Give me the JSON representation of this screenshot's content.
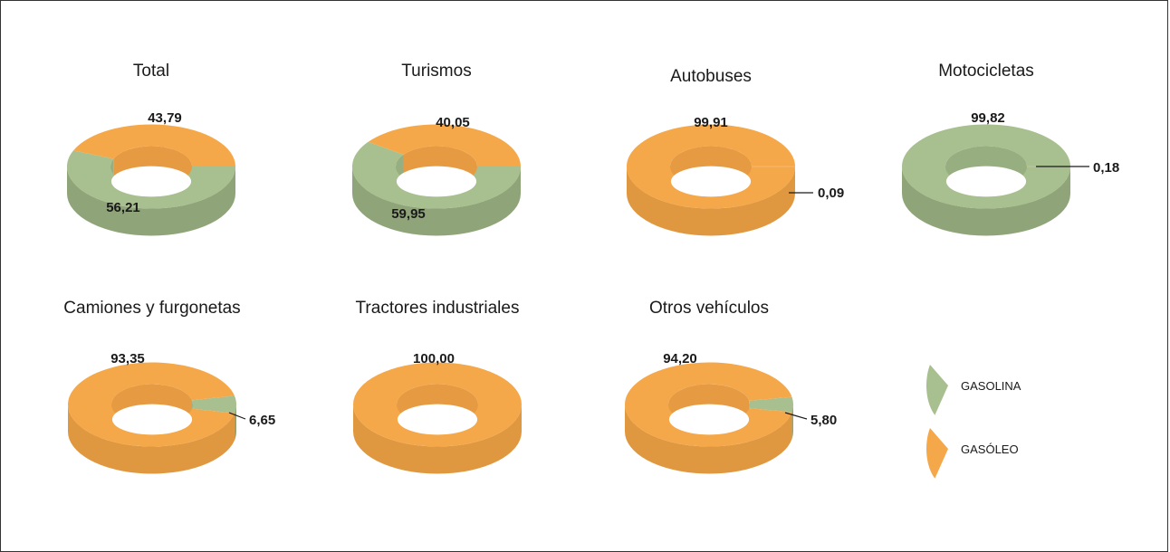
{
  "chart_data": [
    {
      "type": "pie",
      "title": "Total",
      "series": [
        {
          "name": "GASOLINA",
          "value": 56.21,
          "label": "56,21"
        },
        {
          "name": "GASÓLEO",
          "value": 43.79,
          "label": "43,79"
        }
      ]
    },
    {
      "type": "pie",
      "title": "Turismos",
      "series": [
        {
          "name": "GASOLINA",
          "value": 59.95,
          "label": "59,95"
        },
        {
          "name": "GASÓLEO",
          "value": 40.05,
          "label": "40,05"
        }
      ]
    },
    {
      "type": "pie",
      "title": "Autobuses",
      "series": [
        {
          "name": "GASOLINA",
          "value": 0.09,
          "label": "0,09"
        },
        {
          "name": "GASÓLEO",
          "value": 99.91,
          "label": "99,91"
        }
      ]
    },
    {
      "type": "pie",
      "title": "Motocicletas",
      "series": [
        {
          "name": "GASOLINA",
          "value": 99.82,
          "label": "99,82"
        },
        {
          "name": "GASÓLEO",
          "value": 0.18,
          "label": "0,18"
        }
      ]
    },
    {
      "type": "pie",
      "title": "Camiones y furgonetas",
      "series": [
        {
          "name": "GASOLINA",
          "value": 6.65,
          "label": "6,65"
        },
        {
          "name": "GASÓLEO",
          "value": 93.35,
          "label": "93,35"
        }
      ]
    },
    {
      "type": "pie",
      "title": "Tractores industriales",
      "series": [
        {
          "name": "GASOLINA",
          "value": 0,
          "label": ""
        },
        {
          "name": "GASÓLEO",
          "value": 100,
          "label": "100,00"
        }
      ]
    },
    {
      "type": "pie",
      "title": "Otros vehículos",
      "series": [
        {
          "name": "GASOLINA",
          "value": 5.8,
          "label": "5,80"
        },
        {
          "name": "GASÓLEO",
          "value": 94.2,
          "label": "94,20"
        }
      ]
    }
  ],
  "legend": {
    "items": [
      {
        "name": "GASOLINA",
        "label": "GASOLINA",
        "color": "#a8bf8f"
      },
      {
        "name": "GASÓLEO",
        "label": "GASÓLEO",
        "color": "#f5a84a"
      }
    ]
  },
  "colors": {
    "GASOLINA": {
      "top": "#a8bf8f",
      "side": "#8fa579",
      "inner": "#97af80"
    },
    "GASÓLEO": {
      "top": "#f5a84a",
      "side": "#e09840",
      "inner": "#e69b43"
    }
  }
}
